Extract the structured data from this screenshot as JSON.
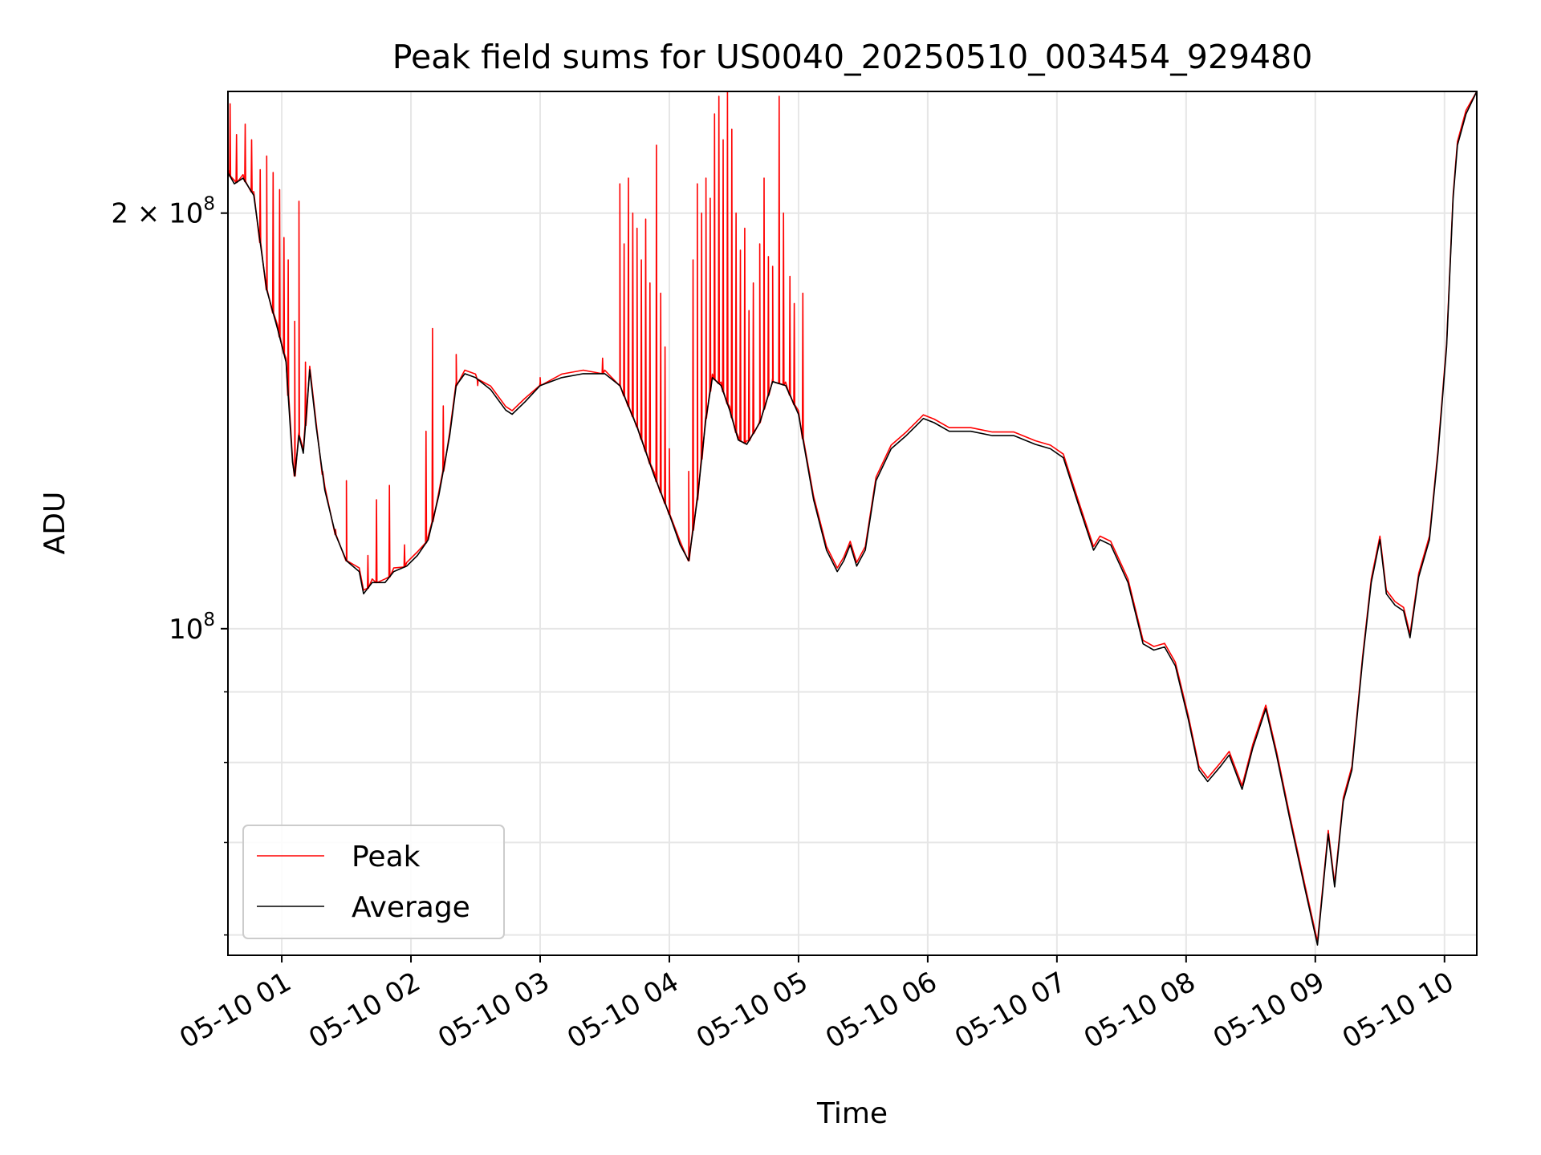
{
  "chart_data": {
    "type": "line",
    "title": "Peak field sums for US0040_20250510_003454_929480",
    "xlabel": "Time",
    "ylabel": "ADU",
    "y_scale": "log",
    "ylim": [
      58000000,
      245000000
    ],
    "xlim": [
      "2025-05-10 00:35",
      "2025-05-10 10:15"
    ],
    "grid": true,
    "legend_position": "lower-left",
    "colors": {
      "Peak": "#ff0000",
      "Average": "#000000"
    },
    "x_ticks": [
      "2025-05-10 01:00",
      "2025-05-10 02:00",
      "2025-05-10 03:00",
      "2025-05-10 04:00",
      "2025-05-10 05:00",
      "2025-05-10 06:00",
      "2025-05-10 07:00",
      "2025-05-10 08:00",
      "2025-05-10 09:00",
      "2025-05-10 10:00"
    ],
    "x_tick_labels": [
      "05-10 01",
      "05-10 02",
      "05-10 03",
      "05-10 04",
      "05-10 05",
      "05-10 06",
      "05-10 07",
      "05-10 08",
      "05-10 09",
      "05-10 10"
    ],
    "y_major_ticks": [
      {
        "value": 100000000,
        "mantissa": "",
        "base": "10",
        "exp": "8"
      },
      {
        "value": 200000000,
        "mantissa": "2 × ",
        "base": "10",
        "exp": "8"
      }
    ],
    "y_minor_ticks": [
      60000000,
      70000000,
      80000000,
      90000000
    ],
    "series": [
      {
        "name": "Average",
        "points": [
          [
            "2025-05-10 00:35",
            214000000
          ],
          [
            "2025-05-10 00:38",
            210000000
          ],
          [
            "2025-05-10 00:42",
            212000000
          ],
          [
            "2025-05-10 00:47",
            206000000
          ],
          [
            "2025-05-10 00:53",
            176000000
          ],
          [
            "2025-05-10 00:58",
            165000000
          ],
          [
            "2025-05-10 01:02",
            156000000
          ],
          [
            "2025-05-10 01:05",
            132000000
          ],
          [
            "2025-05-10 01:06",
            129000000
          ],
          [
            "2025-05-10 01:08",
            138000000
          ],
          [
            "2025-05-10 01:10",
            134000000
          ],
          [
            "2025-05-10 01:13",
            154000000
          ],
          [
            "2025-05-10 01:16",
            140000000
          ],
          [
            "2025-05-10 01:20",
            126000000
          ],
          [
            "2025-05-10 01:25",
            117000000
          ],
          [
            "2025-05-10 01:30",
            112000000
          ],
          [
            "2025-05-10 01:36",
            110000000
          ],
          [
            "2025-05-10 01:38",
            106000000
          ],
          [
            "2025-05-10 01:42",
            108000000
          ],
          [
            "2025-05-10 01:48",
            108000000
          ],
          [
            "2025-05-10 01:52",
            110000000
          ],
          [
            "2025-05-10 01:58",
            111000000
          ],
          [
            "2025-05-10 02:03",
            113000000
          ],
          [
            "2025-05-10 02:08",
            116000000
          ],
          [
            "2025-05-10 02:13",
            125000000
          ],
          [
            "2025-05-10 02:18",
            138000000
          ],
          [
            "2025-05-10 02:21",
            150000000
          ],
          [
            "2025-05-10 02:25",
            153000000
          ],
          [
            "2025-05-10 02:30",
            152000000
          ],
          [
            "2025-05-10 02:37",
            149000000
          ],
          [
            "2025-05-10 02:44",
            144000000
          ],
          [
            "2025-05-10 02:47",
            143000000
          ],
          [
            "2025-05-10 02:53",
            146000000
          ],
          [
            "2025-05-10 03:00",
            150000000
          ],
          [
            "2025-05-10 03:10",
            152000000
          ],
          [
            "2025-05-10 03:20",
            153000000
          ],
          [
            "2025-05-10 03:30",
            153000000
          ],
          [
            "2025-05-10 03:37",
            150000000
          ],
          [
            "2025-05-10 03:45",
            140000000
          ],
          [
            "2025-05-10 03:53",
            129000000
          ],
          [
            "2025-05-10 04:00",
            121000000
          ],
          [
            "2025-05-10 04:05",
            115000000
          ],
          [
            "2025-05-10 04:09",
            112000000
          ],
          [
            "2025-05-10 04:13",
            124000000
          ],
          [
            "2025-05-10 04:17",
            142000000
          ],
          [
            "2025-05-10 04:20",
            152000000
          ],
          [
            "2025-05-10 04:24",
            150000000
          ],
          [
            "2025-05-10 04:28",
            144000000
          ],
          [
            "2025-05-10 04:32",
            137000000
          ],
          [
            "2025-05-10 04:36",
            136000000
          ],
          [
            "2025-05-10 04:42",
            141000000
          ],
          [
            "2025-05-10 04:48",
            151000000
          ],
          [
            "2025-05-10 04:54",
            150000000
          ],
          [
            "2025-05-10 05:00",
            143000000
          ],
          [
            "2025-05-10 05:07",
            124000000
          ],
          [
            "2025-05-10 05:13",
            114000000
          ],
          [
            "2025-05-10 05:18",
            110000000
          ],
          [
            "2025-05-10 05:21",
            112000000
          ],
          [
            "2025-05-10 05:24",
            115000000
          ],
          [
            "2025-05-10 05:27",
            111000000
          ],
          [
            "2025-05-10 05:31",
            114000000
          ],
          [
            "2025-05-10 05:36",
            128000000
          ],
          [
            "2025-05-10 05:43",
            135000000
          ],
          [
            "2025-05-10 05:50",
            138000000
          ],
          [
            "2025-05-10 05:58",
            142000000
          ],
          [
            "2025-05-10 06:03",
            141000000
          ],
          [
            "2025-05-10 06:10",
            139000000
          ],
          [
            "2025-05-10 06:20",
            139000000
          ],
          [
            "2025-05-10 06:30",
            138000000
          ],
          [
            "2025-05-10 06:40",
            138000000
          ],
          [
            "2025-05-10 06:50",
            136000000
          ],
          [
            "2025-05-10 06:57",
            135000000
          ],
          [
            "2025-05-10 07:03",
            133000000
          ],
          [
            "2025-05-10 07:10",
            123000000
          ],
          [
            "2025-05-10 07:17",
            114000000
          ],
          [
            "2025-05-10 07:20",
            116000000
          ],
          [
            "2025-05-10 07:25",
            115000000
          ],
          [
            "2025-05-10 07:33",
            108000000
          ],
          [
            "2025-05-10 07:40",
            97500000
          ],
          [
            "2025-05-10 07:45",
            96500000
          ],
          [
            "2025-05-10 07:50",
            97000000
          ],
          [
            "2025-05-10 07:55",
            94000000
          ],
          [
            "2025-05-10 08:01",
            86000000
          ],
          [
            "2025-05-10 08:06",
            79000000
          ],
          [
            "2025-05-10 08:10",
            77500000
          ],
          [
            "2025-05-10 08:16",
            79500000
          ],
          [
            "2025-05-10 08:20",
            81000000
          ],
          [
            "2025-05-10 08:26",
            76500000
          ],
          [
            "2025-05-10 08:31",
            82000000
          ],
          [
            "2025-05-10 08:37",
            87500000
          ],
          [
            "2025-05-10 08:42",
            81000000
          ],
          [
            "2025-05-10 08:48",
            73000000
          ],
          [
            "2025-05-10 08:55",
            65000000
          ],
          [
            "2025-05-10 09:01",
            59000000
          ],
          [
            "2025-05-10 09:06",
            71000000
          ],
          [
            "2025-05-10 09:09",
            65000000
          ],
          [
            "2025-05-10 09:13",
            75000000
          ],
          [
            "2025-05-10 09:17",
            79000000
          ],
          [
            "2025-05-10 09:22",
            95000000
          ],
          [
            "2025-05-10 09:26",
            108000000
          ],
          [
            "2025-05-10 09:30",
            116000000
          ],
          [
            "2025-05-10 09:33",
            106000000
          ],
          [
            "2025-05-10 09:37",
            104000000
          ],
          [
            "2025-05-10 09:41",
            103000000
          ],
          [
            "2025-05-10 09:44",
            98500000
          ],
          [
            "2025-05-10 09:48",
            109000000
          ],
          [
            "2025-05-10 09:53",
            116000000
          ],
          [
            "2025-05-10 09:57",
            134000000
          ],
          [
            "2025-05-10 10:01",
            160000000
          ],
          [
            "2025-05-10 10:04",
            205000000
          ],
          [
            "2025-05-10 10:06",
            224000000
          ],
          [
            "2025-05-10 10:10",
            236000000
          ],
          [
            "2025-05-10 10:15",
            245000000
          ]
        ]
      },
      {
        "name": "Peak",
        "spikes": [
          [
            "2025-05-10 00:36",
            240000000
          ],
          [
            "2025-05-10 00:39",
            228000000
          ],
          [
            "2025-05-10 00:43",
            232000000
          ],
          [
            "2025-05-10 00:46",
            226000000
          ],
          [
            "2025-05-10 00:50",
            215000000
          ],
          [
            "2025-05-10 00:53",
            220000000
          ],
          [
            "2025-05-10 00:56",
            214000000
          ],
          [
            "2025-05-10 00:59",
            208000000
          ],
          [
            "2025-05-10 01:01",
            192000000
          ],
          [
            "2025-05-10 01:03",
            185000000
          ],
          [
            "2025-05-10 01:06",
            167000000
          ],
          [
            "2025-05-10 01:08",
            204000000
          ],
          [
            "2025-05-10 01:11",
            156000000
          ],
          [
            "2025-05-10 01:19",
            130000000
          ],
          [
            "2025-05-10 01:25",
            118000000
          ],
          [
            "2025-05-10 01:30",
            128000000
          ],
          [
            "2025-05-10 01:40",
            113000000
          ],
          [
            "2025-05-10 01:44",
            124000000
          ],
          [
            "2025-05-10 01:50",
            127000000
          ],
          [
            "2025-05-10 01:57",
            115000000
          ],
          [
            "2025-05-10 02:07",
            139000000
          ],
          [
            "2025-05-10 02:10",
            165000000
          ],
          [
            "2025-05-10 02:15",
            145000000
          ],
          [
            "2025-05-10 02:21",
            158000000
          ],
          [
            "2025-05-10 02:31",
            150000000
          ],
          [
            "2025-05-10 03:00",
            152000000
          ],
          [
            "2025-05-10 03:29",
            157000000
          ],
          [
            "2025-05-10 03:37",
            210000000
          ],
          [
            "2025-05-10 03:39",
            190000000
          ],
          [
            "2025-05-10 03:41",
            212000000
          ],
          [
            "2025-05-10 03:43",
            200000000
          ],
          [
            "2025-05-10 03:45",
            195000000
          ],
          [
            "2025-05-10 03:47",
            185000000
          ],
          [
            "2025-05-10 03:49",
            198000000
          ],
          [
            "2025-05-10 03:51",
            178000000
          ],
          [
            "2025-05-10 03:54",
            224000000
          ],
          [
            "2025-05-10 03:56",
            175000000
          ],
          [
            "2025-05-10 03:58",
            160000000
          ],
          [
            "2025-05-10 04:00",
            135000000
          ],
          [
            "2025-05-10 04:09",
            130000000
          ],
          [
            "2025-05-10 04:11",
            185000000
          ],
          [
            "2025-05-10 04:13",
            210000000
          ],
          [
            "2025-05-10 04:15",
            200000000
          ],
          [
            "2025-05-10 04:17",
            212000000
          ],
          [
            "2025-05-10 04:19",
            205000000
          ],
          [
            "2025-05-10 04:21",
            236000000
          ],
          [
            "2025-05-10 04:23",
            243000000
          ],
          [
            "2025-05-10 04:25",
            226000000
          ],
          [
            "2025-05-10 04:27",
            245000000
          ],
          [
            "2025-05-10 04:29",
            230000000
          ],
          [
            "2025-05-10 04:31",
            200000000
          ],
          [
            "2025-05-10 04:33",
            188000000
          ],
          [
            "2025-05-10 04:35",
            195000000
          ],
          [
            "2025-05-10 04:37",
            170000000
          ],
          [
            "2025-05-10 04:39",
            178000000
          ],
          [
            "2025-05-10 04:42",
            190000000
          ],
          [
            "2025-05-10 04:44",
            212000000
          ],
          [
            "2025-05-10 04:46",
            186000000
          ],
          [
            "2025-05-10 04:48",
            183000000
          ],
          [
            "2025-05-10 04:51",
            243000000
          ],
          [
            "2025-05-10 04:53",
            200000000
          ],
          [
            "2025-05-10 04:56",
            180000000
          ],
          [
            "2025-05-10 04:58",
            172000000
          ],
          [
            "2025-05-10 05:02",
            175000000
          ]
        ]
      }
    ]
  }
}
